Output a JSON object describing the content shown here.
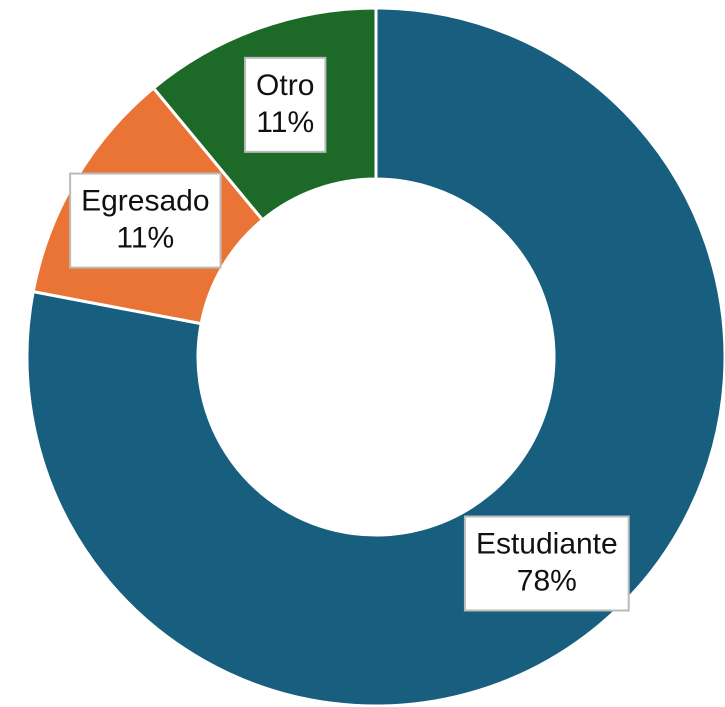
{
  "chart_data": {
    "type": "donut",
    "categories": [
      "Estudiante",
      "Egresado",
      "Otro"
    ],
    "values": [
      78,
      11,
      11
    ],
    "value_labels": [
      "78%",
      "11%",
      "11%"
    ],
    "colors": [
      "#175e7f",
      "#e97435",
      "#1d6a28"
    ]
  }
}
